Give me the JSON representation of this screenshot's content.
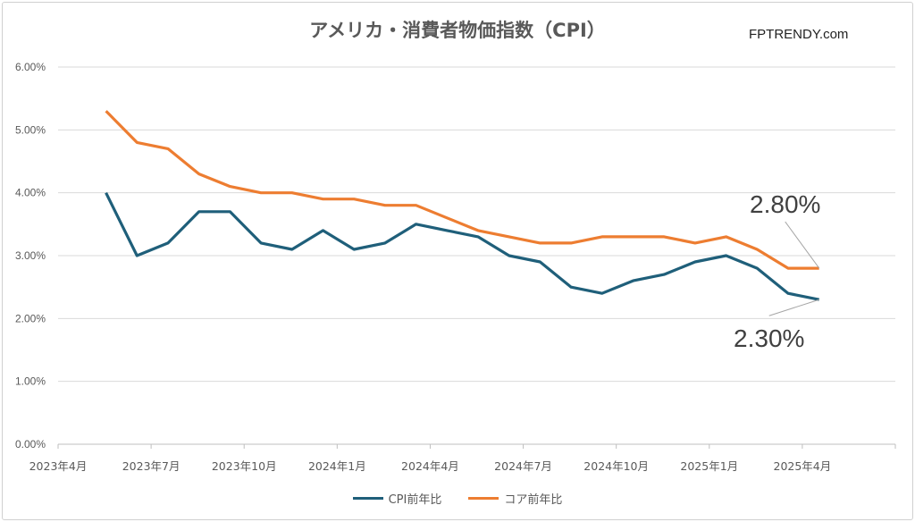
{
  "chart_data": {
    "type": "line",
    "title": "アメリカ・消費者物価指数（CPI）",
    "watermark": "FPTRENDY.com",
    "y_ticks": [
      "0.00%",
      "1.00%",
      "2.00%",
      "3.00%",
      "4.00%",
      "5.00%",
      "6.00%"
    ],
    "ylim": [
      0,
      6
    ],
    "x_ticks": [
      "2023年4月",
      "2023年7月",
      "2023年10月",
      "2024年1月",
      "2024年4月",
      "2024年7月",
      "2024年10月",
      "2025年1月",
      "2025年4月"
    ],
    "x_months": [
      "2023-05",
      "2023-06",
      "2023-07",
      "2023-08",
      "2023-09",
      "2023-10",
      "2023-11",
      "2023-12",
      "2024-01",
      "2024-02",
      "2024-03",
      "2024-04",
      "2024-05",
      "2024-06",
      "2024-07",
      "2024-08",
      "2024-09",
      "2024-10",
      "2024-11",
      "2024-12",
      "2025-01",
      "2025-02",
      "2025-03",
      "2025-04"
    ],
    "grid": true,
    "legend_position": "bottom",
    "series": [
      {
        "name": "CPI前年比",
        "color": "#1f5f7a",
        "values": [
          4.0,
          3.0,
          3.2,
          3.7,
          3.7,
          3.2,
          3.1,
          3.4,
          3.1,
          3.2,
          3.5,
          3.4,
          3.3,
          3.0,
          2.9,
          2.5,
          2.4,
          2.6,
          2.7,
          2.9,
          3.0,
          2.8,
          2.4,
          2.3
        ]
      },
      {
        "name": "コア前年比",
        "color": "#ed7d31",
        "values": [
          5.3,
          4.8,
          4.7,
          4.3,
          4.1,
          4.0,
          4.0,
          3.9,
          3.9,
          3.8,
          3.8,
          3.6,
          3.4,
          3.3,
          3.2,
          3.2,
          3.3,
          3.3,
          3.3,
          3.2,
          3.3,
          3.1,
          2.8,
          2.8
        ]
      }
    ],
    "annotations": [
      {
        "text": "2.80%",
        "series": 1,
        "index": 23
      },
      {
        "text": "2.30%",
        "series": 0,
        "index": 23
      }
    ]
  }
}
